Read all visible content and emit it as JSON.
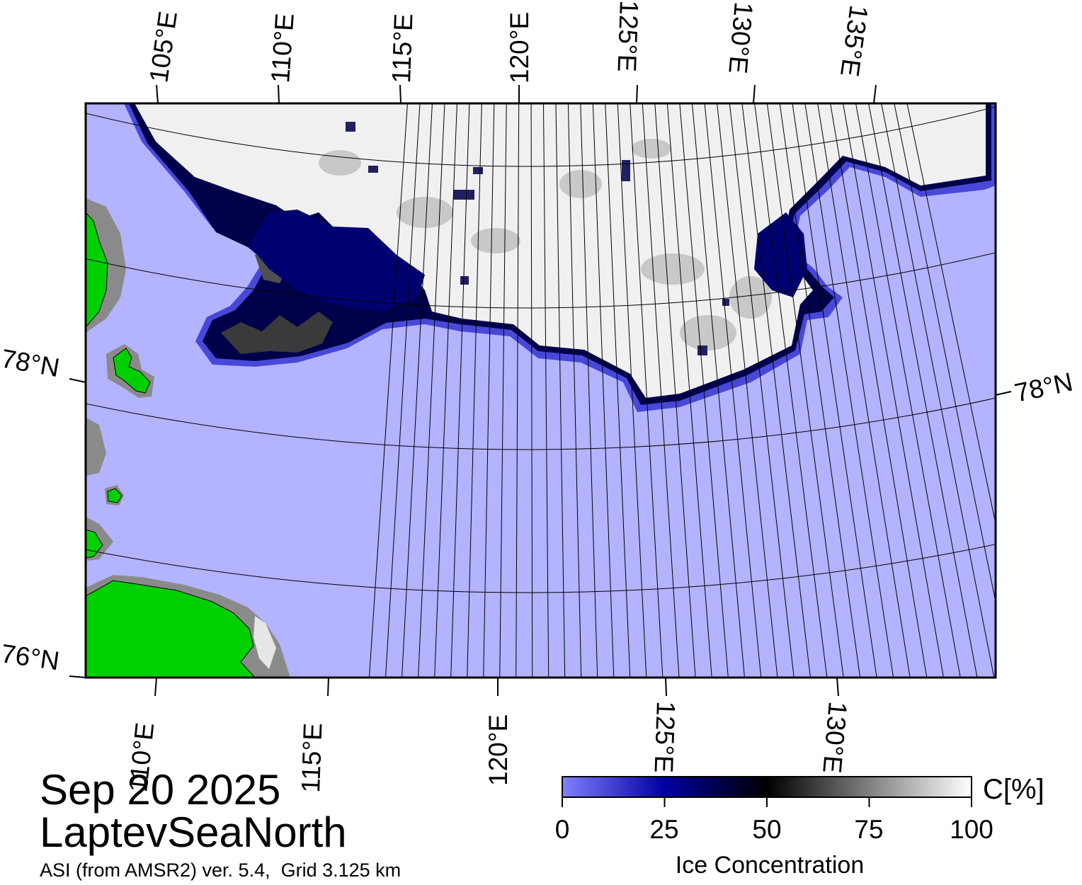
{
  "header": {
    "date": "Sep 20 2025",
    "region": "LaptevSeaNorth",
    "product": "ASI (from AMSR2) ver. 5.4,  Grid 3.125 km"
  },
  "map": {
    "top_lon_labels": [
      "105°E",
      "110°E",
      "115°E",
      "120°E",
      "125°E",
      "130°E",
      "135°E"
    ],
    "bottom_lon_labels": [
      "110°E",
      "115°E",
      "120°E",
      "125°E",
      "130°E"
    ],
    "left_lat_labels": [
      "78°N",
      "76°N"
    ],
    "right_lat_labels": [
      "78°N"
    ],
    "colors": {
      "open_water": "#b3b3ff",
      "land": "#00d000",
      "coast": "#8a8a8a",
      "ice_edge_dark": "#00004a",
      "ice_edge_mid": "#2020b0",
      "ice_pack": "#f2f2f2"
    }
  },
  "colorbar": {
    "ticks": [
      "0",
      "25",
      "50",
      "75",
      "100"
    ],
    "unit": "C[%]",
    "title": "Ice Concentration",
    "stops": [
      "#8080ff",
      "#0000a0",
      "#000000",
      "#808080",
      "#ffffff"
    ]
  }
}
